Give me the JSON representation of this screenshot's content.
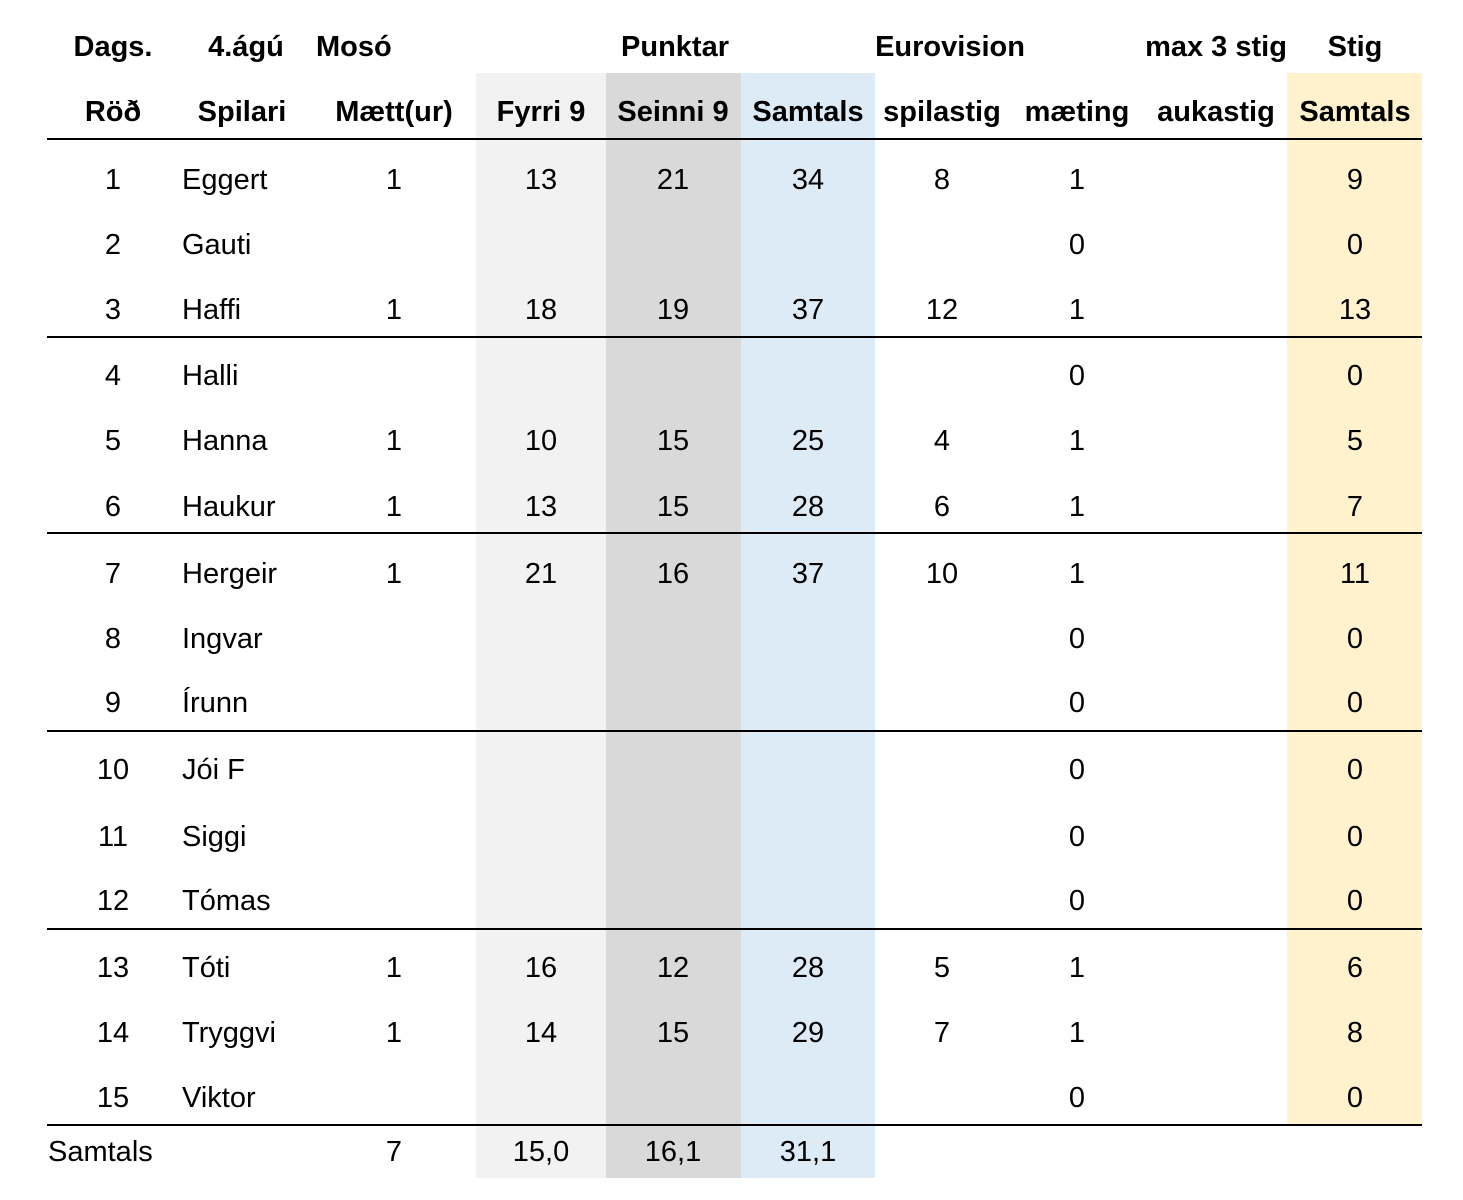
{
  "header_top": {
    "dags": "Dags.",
    "date": "4.ágú",
    "course": "Mosó",
    "punktar": "Punktar",
    "eurovision": "Eurovision",
    "max": "max 3 stig",
    "stig": "Stig"
  },
  "columns": [
    "Röð",
    "Spilari",
    "Mætt(ur)",
    "Fyrri 9",
    "Seinni 9",
    "Samtals",
    "spilastig",
    "mæting",
    "aukastig",
    "Samtals"
  ],
  "rows": [
    [
      "1",
      "Eggert",
      "1",
      "13",
      "21",
      "34",
      "8",
      "1",
      "",
      "9"
    ],
    [
      "2",
      "Gauti",
      "",
      "",
      "",
      "",
      "",
      "0",
      "",
      "0"
    ],
    [
      "3",
      "Haffi",
      "1",
      "18",
      "19",
      "37",
      "12",
      "1",
      "",
      "13"
    ],
    [
      "4",
      "Halli",
      "",
      "",
      "",
      "",
      "",
      "0",
      "",
      "0"
    ],
    [
      "5",
      "Hanna",
      "1",
      "10",
      "15",
      "25",
      "4",
      "1",
      "",
      "5"
    ],
    [
      "6",
      "Haukur",
      "1",
      "13",
      "15",
      "28",
      "6",
      "1",
      "",
      "7"
    ],
    [
      "7",
      "Hergeir",
      "1",
      "21",
      "16",
      "37",
      "10",
      "1",
      "",
      "11"
    ],
    [
      "8",
      "Ingvar",
      "",
      "",
      "",
      "",
      "",
      "0",
      "",
      "0"
    ],
    [
      "9",
      "Írunn",
      "",
      "",
      "",
      "",
      "",
      "0",
      "",
      "0"
    ],
    [
      "10",
      "Jói F",
      "",
      "",
      "",
      "",
      "",
      "0",
      "",
      "0"
    ],
    [
      "11",
      "Siggi",
      "",
      "",
      "",
      "",
      "",
      "0",
      "",
      "0"
    ],
    [
      "12",
      "Tómas",
      "",
      "",
      "",
      "",
      "",
      "0",
      "",
      "0"
    ],
    [
      "13",
      "Tóti",
      "1",
      "16",
      "12",
      "28",
      "5",
      "1",
      "",
      "6"
    ],
    [
      "14",
      "Tryggvi",
      "1",
      "14",
      "15",
      "29",
      "7",
      "1",
      "",
      "8"
    ],
    [
      "15",
      "Viktor",
      "",
      "",
      "",
      "",
      "",
      "0",
      "",
      "0"
    ]
  ],
  "totals": {
    "label": "Samtals",
    "attended": "7",
    "fyrri": "15,0",
    "seinni": "16,1",
    "samtals": "31,1"
  },
  "colors": {
    "fyrri": "#f2f2f2",
    "seinni": "#d9d9d9",
    "samtals": "#ddebf7",
    "stig": "#fff2cc"
  }
}
